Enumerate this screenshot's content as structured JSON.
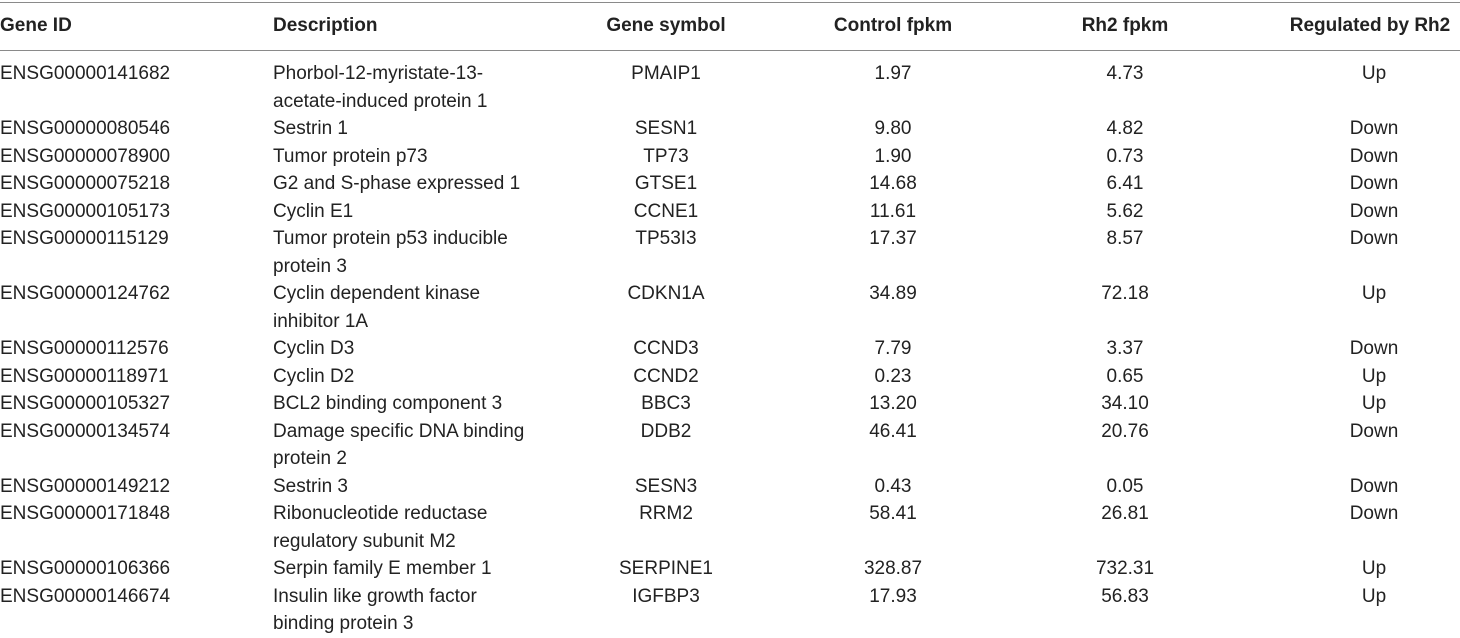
{
  "table": {
    "headers": {
      "gene_id": "Gene ID",
      "description": "Description",
      "gene_symbol": "Gene symbol",
      "control_fpkm": "Control fpkm",
      "rh2_fpkm": "Rh2 fpkm",
      "regulated": "Regulated by Rh2"
    },
    "rows": [
      {
        "gene_id": "ENSG00000141682",
        "desc1": "Phorbol-12-myristate-13-",
        "desc2": "acetate-induced protein 1",
        "symbol": "PMAIP1",
        "control": "1.97",
        "rh2": "4.73",
        "regulated": "Up"
      },
      {
        "gene_id": "ENSG00000080546",
        "desc1": "Sestrin 1",
        "desc2": "",
        "symbol": "SESN1",
        "control": "9.80",
        "rh2": "4.82",
        "regulated": "Down"
      },
      {
        "gene_id": "ENSG00000078900",
        "desc1": "Tumor protein p73",
        "desc2": "",
        "symbol": "TP73",
        "control": "1.90",
        "rh2": "0.73",
        "regulated": "Down"
      },
      {
        "gene_id": "ENSG00000075218",
        "desc1": "G2 and S-phase expressed 1",
        "desc2": "",
        "symbol": "GTSE1",
        "control": "14.68",
        "rh2": "6.41",
        "regulated": "Down"
      },
      {
        "gene_id": "ENSG00000105173",
        "desc1": "Cyclin E1",
        "desc2": "",
        "symbol": "CCNE1",
        "control": "11.61",
        "rh2": "5.62",
        "regulated": "Down"
      },
      {
        "gene_id": "ENSG00000115129",
        "desc1": "Tumor protein p53 inducible",
        "desc2": "protein 3",
        "symbol": "TP53I3",
        "control": "17.37",
        "rh2": "8.57",
        "regulated": "Down"
      },
      {
        "gene_id": "ENSG00000124762",
        "desc1": "Cyclin dependent kinase",
        "desc2": "inhibitor 1A",
        "symbol": "CDKN1A",
        "control": "34.89",
        "rh2": "72.18",
        "regulated": "Up"
      },
      {
        "gene_id": "ENSG00000112576",
        "desc1": "Cyclin D3",
        "desc2": "",
        "symbol": "CCND3",
        "control": "7.79",
        "rh2": "3.37",
        "regulated": "Down"
      },
      {
        "gene_id": "ENSG00000118971",
        "desc1": "Cyclin D2",
        "desc2": "",
        "symbol": "CCND2",
        "control": "0.23",
        "rh2": "0.65",
        "regulated": "Up"
      },
      {
        "gene_id": "ENSG00000105327",
        "desc1": "BCL2 binding component 3",
        "desc2": "",
        "symbol": "BBC3",
        "control": "13.20",
        "rh2": "34.10",
        "regulated": "Up"
      },
      {
        "gene_id": "ENSG00000134574",
        "desc1": "Damage specific DNA binding",
        "desc2": "protein 2",
        "symbol": "DDB2",
        "control": "46.41",
        "rh2": "20.76",
        "regulated": "Down"
      },
      {
        "gene_id": "ENSG00000149212",
        "desc1": "Sestrin 3",
        "desc2": "",
        "symbol": "SESN3",
        "control": "0.43",
        "rh2": "0.05",
        "regulated": "Down"
      },
      {
        "gene_id": "ENSG00000171848",
        "desc1": "Ribonucleotide reductase",
        "desc2": "regulatory subunit M2",
        "symbol": "RRM2",
        "control": "58.41",
        "rh2": "26.81",
        "regulated": "Down"
      },
      {
        "gene_id": "ENSG00000106366",
        "desc1": "Serpin family E member 1",
        "desc2": "",
        "symbol": "SERPINE1",
        "control": "328.87",
        "rh2": "732.31",
        "regulated": "Up"
      },
      {
        "gene_id": "ENSG00000146674",
        "desc1": "Insulin like growth factor",
        "desc2": "binding protein 3",
        "symbol": "IGFBP3",
        "control": "17.93",
        "rh2": "56.83",
        "regulated": "Up"
      }
    ]
  }
}
